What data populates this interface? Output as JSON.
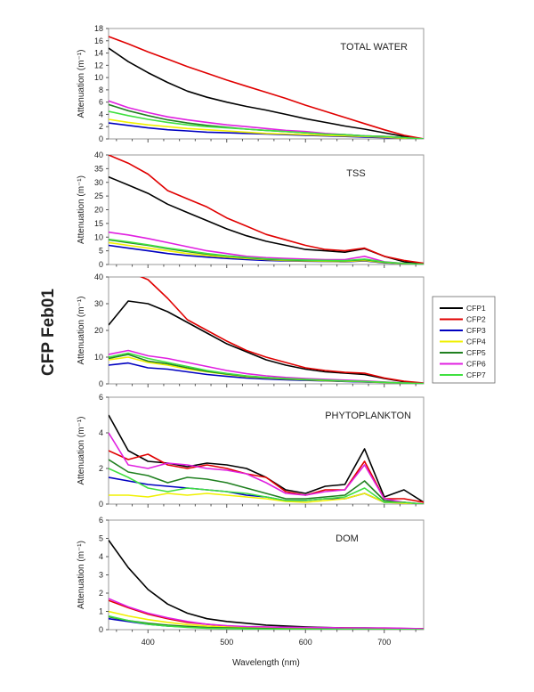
{
  "chart_data": {
    "type": "line",
    "figure_label": "CFP Feb01",
    "xlabel": "Wavelength (nm)",
    "xlim": [
      350,
      750
    ],
    "xticks": [
      400,
      500,
      600,
      700
    ],
    "x": [
      350,
      375,
      400,
      425,
      450,
      475,
      500,
      525,
      550,
      575,
      600,
      625,
      650,
      675,
      700,
      725,
      750
    ],
    "legend": {
      "placement": "right",
      "entries": [
        "CFP1",
        "CFP2",
        "CFP3",
        "CFP4",
        "CFP5",
        "CFP6",
        "CFP7"
      ]
    },
    "colors": {
      "CFP1": "#000000",
      "CFP2": "#e00000",
      "CFP3": "#0000c0",
      "CFP4": "#f0f000",
      "CFP5": "#208020",
      "CFP6": "#e020e0",
      "CFP7": "#40e040"
    },
    "panels": [
      {
        "title": "TOTAL WATER",
        "ylabel": "Attenuation (m⁻¹)",
        "ylim": [
          0,
          18
        ],
        "yticks": [
          0,
          2,
          4,
          6,
          8,
          10,
          12,
          14,
          16,
          18
        ],
        "series": [
          {
            "name": "CFP1",
            "values": [
              14.8,
              12.6,
              10.8,
              9.2,
              7.8,
              6.8,
              6.0,
              5.3,
              4.7,
              4.0,
              3.3,
              2.7,
              2.1,
              1.6,
              1.0,
              0.4,
              0
            ]
          },
          {
            "name": "CFP2",
            "values": [
              16.7,
              15.5,
              14.2,
              13,
              11.8,
              10.7,
              9.6,
              8.6,
              7.6,
              6.6,
              5.5,
              4.5,
              3.5,
              2.5,
              1.5,
              0.6,
              0
            ]
          },
          {
            "name": "CFP3",
            "values": [
              2.6,
              2.2,
              1.8,
              1.5,
              1.3,
              1.1,
              1.0,
              0.9,
              0.8,
              0.7,
              0.6,
              0.5,
              0.4,
              0.3,
              0.2,
              0.1,
              0
            ]
          },
          {
            "name": "CFP4",
            "values": [
              3.2,
              2.7,
              2.3,
              2.0,
              1.7,
              1.5,
              1.3,
              1.1,
              0.9,
              0.8,
              0.7,
              0.6,
              0.5,
              0.4,
              0.3,
              0.1,
              0
            ]
          },
          {
            "name": "CFP5",
            "values": [
              5.6,
              4.6,
              3.8,
              3.1,
              2.6,
              2.2,
              1.9,
              1.6,
              1.4,
              1.2,
              1.0,
              0.8,
              0.7,
              0.5,
              0.4,
              0.2,
              0
            ]
          },
          {
            "name": "CFP6",
            "values": [
              6.2,
              5.1,
              4.3,
              3.6,
              3.1,
              2.7,
              2.3,
              2.0,
              1.7,
              1.4,
              1.2,
              0.9,
              0.7,
              0.5,
              0.4,
              0.2,
              0
            ]
          },
          {
            "name": "CFP7",
            "values": [
              4.5,
              3.8,
              3.2,
              2.7,
              2.3,
              2.0,
              1.8,
              1.6,
              1.4,
              1.2,
              1.0,
              0.8,
              0.7,
              0.5,
              0.4,
              0.2,
              0
            ]
          }
        ]
      },
      {
        "title": "TSS",
        "ylabel": "Attenuation (m⁻¹)",
        "ylim": [
          0,
          40
        ],
        "yticks": [
          0,
          5,
          10,
          15,
          20,
          25,
          30,
          35,
          40
        ],
        "series": [
          {
            "name": "CFP1",
            "values": [
              32,
              29,
              26,
              22,
              19,
              16,
              13,
              10.5,
              8.5,
              7,
              5.5,
              5,
              4.5,
              5.8,
              3,
              1,
              0.3
            ]
          },
          {
            "name": "CFP2",
            "values": [
              40,
              37,
              33,
              27,
              24,
              21,
              17,
              14,
              11,
              9,
              7,
              5.5,
              5,
              6,
              3,
              1.5,
              0.5
            ]
          },
          {
            "name": "CFP3",
            "values": [
              7,
              6,
              5,
              4,
              3.3,
              2.7,
              2.2,
              1.8,
              1.5,
              1.3,
              1.2,
              1.1,
              1.0,
              1.3,
              0.6,
              0.3,
              0.1
            ]
          },
          {
            "name": "CFP4",
            "values": [
              8,
              7,
              6,
              5,
              4,
              3.3,
              2.7,
              2.2,
              1.8,
              1.5,
              1.3,
              1.2,
              1.1,
              1.5,
              0.7,
              0.3,
              0.1
            ]
          },
          {
            "name": "CFP5",
            "values": [
              9,
              8,
              7,
              5.8,
              4.7,
              3.8,
              3.1,
              2.5,
              2.0,
              1.7,
              1.5,
              1.4,
              1.3,
              1.8,
              0.8,
              0.4,
              0.1
            ]
          },
          {
            "name": "CFP6",
            "values": [
              11.8,
              10.8,
              9.5,
              8,
              6.5,
              5,
              4,
              3,
              2.5,
              2.2,
              2,
              1.8,
              1.8,
              3,
              1,
              0.4,
              0.1
            ]
          },
          {
            "name": "CFP7",
            "values": [
              9.2,
              8.3,
              7.2,
              6,
              5,
              4,
              3.2,
              2.6,
              2.1,
              1.8,
              1.6,
              1.5,
              1.4,
              2,
              0.9,
              0.4,
              0.1
            ]
          }
        ]
      },
      {
        "title": "",
        "ylabel": "Attenuation (m⁻¹)",
        "ylim": [
          0,
          40
        ],
        "yticks": [
          0,
          10,
          20,
          30,
          40
        ],
        "series": [
          {
            "name": "CFP1",
            "values": [
              22,
              31,
              30,
              27,
              23,
              19,
              15,
              12,
              9,
              7,
              5.5,
              4.5,
              4,
              3.5,
              2,
              0.8,
              0.2
            ]
          },
          {
            "name": "CFP2",
            "values": [
              null,
              42,
              39,
              32,
              24,
              20,
              16,
              12.5,
              10,
              8,
              6,
              5,
              4.3,
              4,
              2.2,
              1,
              0.3
            ]
          },
          {
            "name": "CFP3",
            "values": [
              7,
              7.8,
              6,
              5.5,
              4.5,
              3.5,
              2.8,
              2.2,
              1.8,
              1.5,
              1.3,
              1.1,
              0.9,
              0.7,
              0.5,
              0.3,
              0.1
            ]
          },
          {
            "name": "CFP4",
            "values": [
              9,
              10,
              8,
              7,
              5.5,
              4.5,
              3.5,
              2.7,
              2.2,
              1.8,
              1.5,
              1.2,
              1.0,
              0.8,
              0.5,
              0.3,
              0.1
            ]
          },
          {
            "name": "CFP5",
            "values": [
              9.5,
              11,
              8.5,
              7.5,
              6,
              4.7,
              3.7,
              2.9,
              2.3,
              1.9,
              1.6,
              1.3,
              1.1,
              0.9,
              0.6,
              0.3,
              0.1
            ]
          },
          {
            "name": "CFP6",
            "values": [
              11,
              12.5,
              10.5,
              9.5,
              8,
              6.5,
              5,
              3.8,
              3,
              2.4,
              2,
              1.7,
              1.4,
              1.1,
              0.7,
              0.3,
              0.1
            ]
          },
          {
            "name": "CFP7",
            "values": [
              10,
              11.5,
              9.5,
              8,
              6.5,
              5,
              3.9,
              3,
              2.4,
              2,
              1.7,
              1.4,
              1.1,
              0.9,
              0.6,
              0.3,
              0.1
            ]
          }
        ]
      },
      {
        "title": "PHYTOPLANKTON",
        "ylabel": "Attenuation (m⁻¹)",
        "ylim": [
          0,
          6
        ],
        "yticks": [
          0,
          2,
          4,
          6
        ],
        "series": [
          {
            "name": "CFP1",
            "values": [
              5,
              3,
              2.4,
              2.3,
              2.1,
              2.3,
              2.2,
              2,
              1.5,
              0.8,
              0.6,
              1,
              1.1,
              3.1,
              0.4,
              0.8,
              0.1
            ]
          },
          {
            "name": "CFP2",
            "values": [
              3,
              2.5,
              2.8,
              2.2,
              2,
              2.2,
              2.0,
              1.7,
              1.5,
              0.7,
              0.5,
              0.8,
              0.8,
              2.4,
              0.3,
              0.3,
              0.1
            ]
          },
          {
            "name": "CFP3",
            "values": [
              1.5,
              1.3,
              1.1,
              1.0,
              0.9,
              0.8,
              0.7,
              0.5,
              0.4,
              0.2,
              0.2,
              0.3,
              0.3,
              0.6,
              0.1,
              0.1,
              0
            ]
          },
          {
            "name": "CFP4",
            "values": [
              0.5,
              0.5,
              0.4,
              0.6,
              0.5,
              0.6,
              0.5,
              0.4,
              0.3,
              0.15,
              0.1,
              0.2,
              0.3,
              0.6,
              0.1,
              0.05,
              0
            ]
          },
          {
            "name": "CFP5",
            "values": [
              2.5,
              1.8,
              1.6,
              1.2,
              1.5,
              1.4,
              1.2,
              0.9,
              0.6,
              0.3,
              0.3,
              0.4,
              0.5,
              1.3,
              0.2,
              0.1,
              0
            ]
          },
          {
            "name": "CFP6",
            "values": [
              4,
              2.2,
              2.0,
              2.3,
              2.2,
              2.0,
              1.9,
              1.7,
              1.2,
              0.6,
              0.5,
              0.7,
              0.8,
              2.2,
              0.3,
              0.1,
              0
            ]
          },
          {
            "name": "CFP7",
            "values": [
              2,
              1.5,
              0.9,
              0.7,
              0.9,
              0.8,
              0.7,
              0.6,
              0.4,
              0.2,
              0.2,
              0.3,
              0.4,
              0.9,
              0.1,
              0.1,
              0
            ]
          }
        ]
      },
      {
        "title": "DOM",
        "ylabel": "Attenuation (m⁻¹)",
        "ylim": [
          0,
          6
        ],
        "yticks": [
          0,
          1,
          2,
          3,
          4,
          5,
          6
        ],
        "series": [
          {
            "name": "CFP1",
            "values": [
              4.9,
              3.4,
              2.2,
              1.4,
              0.9,
              0.6,
              0.45,
              0.35,
              0.25,
              0.2,
              0.15,
              0.12,
              0.1,
              0.1,
              0.08,
              0.06,
              0.05
            ]
          },
          {
            "name": "CFP2",
            "values": [
              1.6,
              1.2,
              0.85,
              0.6,
              0.4,
              0.3,
              0.2,
              0.15,
              0.13,
              0.12,
              0.1,
              0.1,
              0.1,
              0.08,
              0.07,
              0.06,
              0.05
            ]
          },
          {
            "name": "CFP3",
            "values": [
              0.6,
              0.45,
              0.3,
              0.2,
              0.15,
              0.1,
              0.08,
              0.06,
              0.05,
              0.05,
              0.04,
              0.04,
              0.03,
              0.03,
              0.02,
              0.02,
              0.02
            ]
          },
          {
            "name": "CFP4",
            "values": [
              1.0,
              0.75,
              0.55,
              0.4,
              0.28,
              0.2,
              0.15,
              0.12,
              0.1,
              0.09,
              0.08,
              0.07,
              0.06,
              0.05,
              0.05,
              0.04,
              0.03
            ]
          },
          {
            "name": "CFP5",
            "values": [
              0.7,
              0.5,
              0.35,
              0.25,
              0.18,
              0.12,
              0.1,
              0.08,
              0.06,
              0.05,
              0.04,
              0.04,
              0.03,
              0.03,
              0.02,
              0.02,
              0.02
            ]
          },
          {
            "name": "CFP6",
            "values": [
              1.7,
              1.25,
              0.9,
              0.65,
              0.45,
              0.3,
              0.22,
              0.17,
              0.15,
              0.13,
              0.12,
              0.11,
              0.1,
              0.1,
              0.1,
              0.08,
              0.05
            ]
          },
          {
            "name": "CFP7",
            "values": [
              0.75,
              0.5,
              0.3,
              0.2,
              0.12,
              0.08,
              0.06,
              0.04,
              0.03,
              0.03,
              0.02,
              0.02,
              0.02,
              0.02,
              0.01,
              0.01,
              0
            ]
          }
        ]
      }
    ]
  }
}
